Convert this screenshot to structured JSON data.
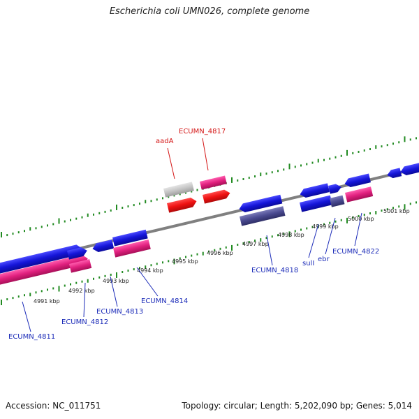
{
  "title": "Escherichia coli UMN026, complete genome",
  "footer": {
    "accession": "Accession: NC_011751",
    "summary": "Topology: circular; Length: 5,202,090 bp; Genes: 5,014"
  },
  "colors": {
    "backbone": "#808080",
    "ticks": "#228b22",
    "feature_blue": "#1a1adc",
    "feature_magenta": "#e0207e",
    "feature_red": "#ee1111",
    "feature_gray": "#bdbdbd",
    "feature_navy": "#4a4a90",
    "label_blue": "#1b2bb8",
    "label_red": "#d41515"
  },
  "ticks": {
    "kbp_labels": [
      "4991 kbp",
      "4992 kbp",
      "4993 kbp",
      "4994 kbp",
      "4995 kbp",
      "4996 kbp",
      "4997 kbp",
      "4998 kbp",
      "4999 kbp",
      "5000 kbp",
      "5001 kbp"
    ]
  },
  "gene_labels": {
    "ECUMN_4811": "ECUMN_4811",
    "ECUMN_4812": "ECUMN_4812",
    "ECUMN_4813": "ECUMN_4813",
    "ECUMN_4814": "ECUMN_4814",
    "ECUMN_4818": "ECUMN_4818",
    "sulI": "sulI",
    "ebr": "ebr",
    "ECUMN_4822": "ECUMN_4822",
    "aadA": "aadA",
    "ECUMN_4817": "ECUMN_4817"
  }
}
